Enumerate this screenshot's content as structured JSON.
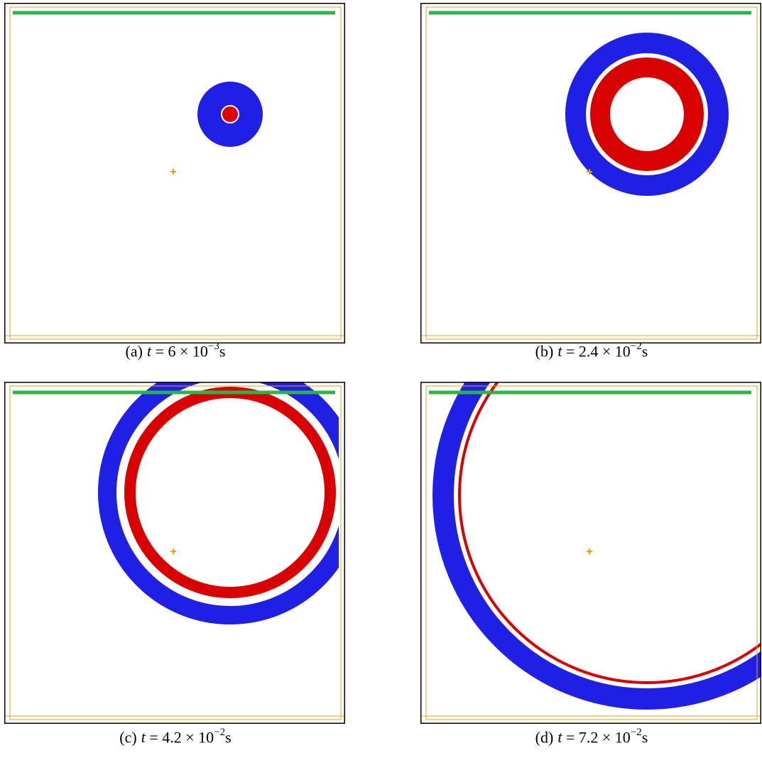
{
  "panels": [
    {
      "label": "(a)",
      "variable": "t",
      "relation": "=",
      "coefficient": "6 × 10",
      "exponent": "−3",
      "unit": "s"
    },
    {
      "label": "(b)",
      "variable": "t",
      "relation": "=",
      "coefficient": "2.4 × 10",
      "exponent": "−2",
      "unit": "s"
    },
    {
      "label": "(c)",
      "variable": "t",
      "relation": "=",
      "coefficient": "4.2 × 10",
      "exponent": "−2",
      "unit": "s"
    },
    {
      "label": "(d)",
      "variable": "t",
      "relation": "=",
      "coefficient": "7.2 × 10",
      "exponent": "−2",
      "unit": "s"
    }
  ]
}
